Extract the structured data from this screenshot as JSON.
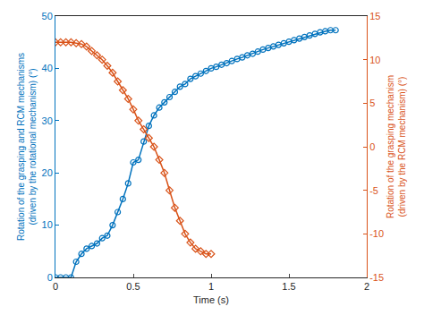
{
  "chart_data": {
    "type": "line",
    "xlabel": "Time (s)",
    "ylabel": "Rotation of the grasping and RCM mechanisms\n(driven by the rotational mechanism) (°)",
    "y2label": "Rotation of the grasping mechanism\n(driven by the RCM mechanism) (°)",
    "xlim": [
      0,
      2
    ],
    "xticks": [
      0,
      0.5,
      1,
      1.5,
      2
    ],
    "ylim": [
      0,
      50
    ],
    "yticks": [
      0,
      10,
      20,
      30,
      40,
      50
    ],
    "y2lim": [
      -15,
      15
    ],
    "y2ticks": [
      -15,
      -10,
      -5,
      0,
      5,
      10,
      15
    ],
    "grid": false,
    "series": [
      {
        "color": "#0072bd",
        "marker": "circle-open",
        "line_style": "solid",
        "axis": "y",
        "x": [
          0,
          0.033,
          0.067,
          0.1,
          0.133,
          0.167,
          0.2,
          0.233,
          0.267,
          0.3,
          0.333,
          0.367,
          0.4,
          0.433,
          0.467,
          0.5,
          0.533,
          0.567,
          0.6,
          0.633,
          0.667,
          0.7,
          0.733,
          0.767,
          0.8,
          0.833,
          0.867,
          0.9,
          0.933,
          0.967,
          1.0,
          1.033,
          1.067,
          1.1,
          1.133,
          1.167,
          1.2,
          1.233,
          1.267,
          1.3,
          1.333,
          1.367,
          1.4,
          1.433,
          1.467,
          1.5,
          1.533,
          1.567,
          1.6,
          1.633,
          1.667,
          1.7,
          1.733,
          1.767,
          1.8
        ],
        "values": [
          0,
          0,
          0,
          0,
          3,
          4.5,
          5.5,
          6,
          6.5,
          7.5,
          8,
          10,
          12.5,
          15,
          18,
          22,
          22.5,
          26,
          29,
          31,
          32.5,
          33.5,
          34.5,
          35.5,
          36.5,
          37,
          38,
          38.5,
          39,
          39.5,
          40,
          40.3,
          40.7,
          41,
          41.4,
          41.8,
          42.1,
          42.5,
          42.8,
          43.2,
          43.6,
          43.9,
          44.2,
          44.5,
          44.8,
          45.1,
          45.4,
          45.7,
          46,
          46.3,
          46.6,
          46.9,
          47.1,
          47.3,
          47.3
        ]
      },
      {
        "color": "#d95319",
        "marker": "diamond-open",
        "line_style": "solid",
        "axis": "y2",
        "x": [
          0,
          0.033,
          0.067,
          0.1,
          0.133,
          0.167,
          0.2,
          0.233,
          0.267,
          0.3,
          0.333,
          0.367,
          0.4,
          0.433,
          0.467,
          0.5,
          0.533,
          0.567,
          0.6,
          0.633,
          0.667,
          0.7,
          0.733,
          0.767,
          0.8,
          0.833,
          0.867,
          0.9,
          0.933,
          0.967,
          1.0
        ],
        "values": [
          12,
          12,
          12,
          12,
          11.9,
          11.8,
          11.5,
          11,
          10.5,
          10,
          9.3,
          8.5,
          7.5,
          6.5,
          5.5,
          4.3,
          3,
          2,
          1,
          0,
          -1.5,
          -3,
          -5,
          -7,
          -8.5,
          -10,
          -11,
          -11.7,
          -12,
          -12.3,
          -12.3
        ]
      }
    ]
  }
}
